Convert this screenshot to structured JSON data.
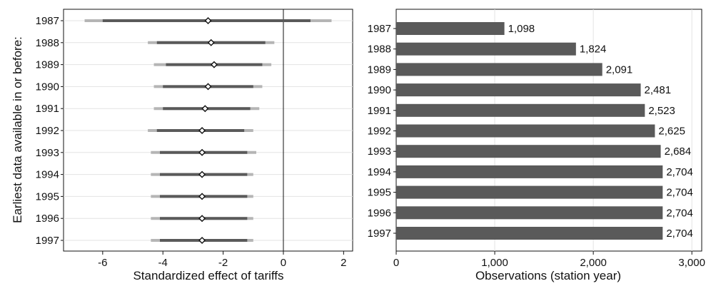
{
  "chart_data": [
    {
      "type": "coefficient-plot",
      "xlabel": "Standardized effect of tariffs",
      "ylabel": "Earliest data available in or before:",
      "xlim": [
        -7.3,
        2.3
      ],
      "xticks": [
        "-6",
        "-4",
        "-2",
        "0",
        "2"
      ],
      "categories": [
        "1987",
        "1988",
        "1989",
        "1990",
        "1991",
        "1992",
        "1993",
        "1994",
        "1995",
        "1996",
        "1997"
      ],
      "points": [
        {
          "year": "1987",
          "estimate": -2.5,
          "ci_inner": [
            -6.0,
            0.9
          ],
          "ci_outer": [
            -6.6,
            1.6
          ]
        },
        {
          "year": "1988",
          "estimate": -2.4,
          "ci_inner": [
            -4.2,
            -0.6
          ],
          "ci_outer": [
            -4.5,
            -0.3
          ]
        },
        {
          "year": "1989",
          "estimate": -2.3,
          "ci_inner": [
            -3.9,
            -0.7
          ],
          "ci_outer": [
            -4.3,
            -0.4
          ]
        },
        {
          "year": "1990",
          "estimate": -2.5,
          "ci_inner": [
            -4.0,
            -1.0
          ],
          "ci_outer": [
            -4.3,
            -0.7
          ]
        },
        {
          "year": "1991",
          "estimate": -2.6,
          "ci_inner": [
            -4.0,
            -1.1
          ],
          "ci_outer": [
            -4.3,
            -0.8
          ]
        },
        {
          "year": "1992",
          "estimate": -2.7,
          "ci_inner": [
            -4.2,
            -1.3
          ],
          "ci_outer": [
            -4.5,
            -1.0
          ]
        },
        {
          "year": "1993",
          "estimate": -2.7,
          "ci_inner": [
            -4.1,
            -1.2
          ],
          "ci_outer": [
            -4.4,
            -0.9
          ]
        },
        {
          "year": "1994",
          "estimate": -2.7,
          "ci_inner": [
            -4.1,
            -1.2
          ],
          "ci_outer": [
            -4.4,
            -1.0
          ]
        },
        {
          "year": "1995",
          "estimate": -2.7,
          "ci_inner": [
            -4.1,
            -1.2
          ],
          "ci_outer": [
            -4.4,
            -1.0
          ]
        },
        {
          "year": "1996",
          "estimate": -2.7,
          "ci_inner": [
            -4.1,
            -1.2
          ],
          "ci_outer": [
            -4.4,
            -1.0
          ]
        },
        {
          "year": "1997",
          "estimate": -2.7,
          "ci_inner": [
            -4.1,
            -1.2
          ],
          "ci_outer": [
            -4.4,
            -1.0
          ]
        }
      ],
      "reference_line": 0,
      "grid": true,
      "colors": {
        "inner": "#5a5a5a",
        "outer": "#b5b5b5",
        "marker_fill": "#ffffff",
        "marker_edge": "#111111"
      }
    },
    {
      "type": "bar",
      "orientation": "horizontal",
      "xlabel": "Observations (station year)",
      "xlim": [
        0,
        3100
      ],
      "xticks": [
        "0",
        "1,000",
        "2,000",
        "3,000"
      ],
      "categories": [
        "1987",
        "1988",
        "1989",
        "1990",
        "1991",
        "1992",
        "1993",
        "1994",
        "1995",
        "1996",
        "1997"
      ],
      "values": [
        1098,
        1824,
        2091,
        2481,
        2523,
        2625,
        2684,
        2704,
        2704,
        2704,
        2704
      ],
      "value_labels": [
        "1,098",
        "1,824",
        "2,091",
        "2,481",
        "2,523",
        "2,625",
        "2,684",
        "2,704",
        "2,704",
        "2,704",
        "2,704"
      ],
      "grid": true,
      "colors": {
        "bar": "#5a5a5a"
      }
    }
  ]
}
